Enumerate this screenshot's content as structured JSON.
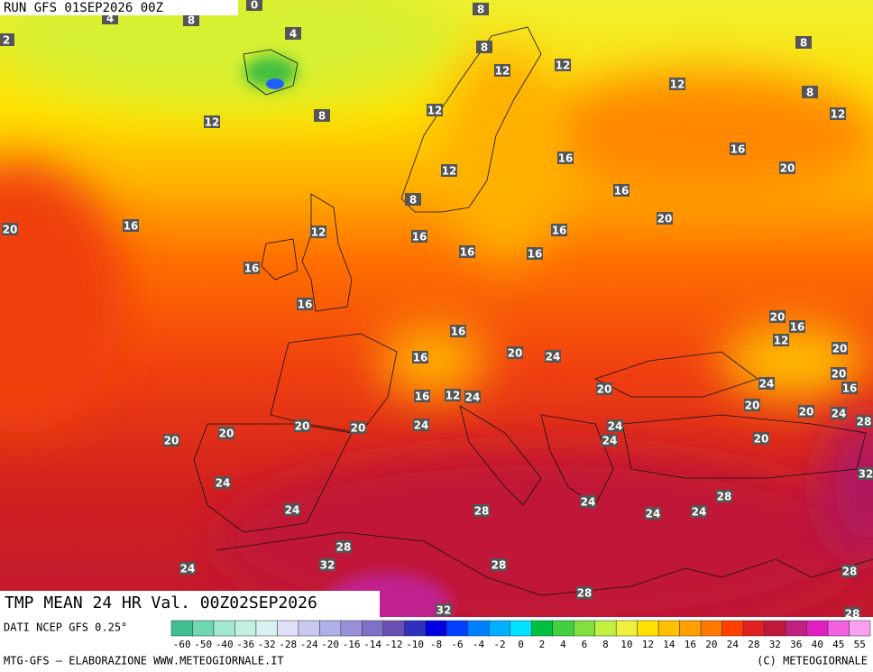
{
  "header": {
    "run": "RUN GFS 01SEP2026 00Z"
  },
  "map": {
    "title": "TMP MEAN 24 HR Val. 00Z02SEP2026",
    "contour_labels": [
      0,
      4,
      8,
      4,
      8,
      2,
      8,
      8,
      12,
      12,
      12,
      8,
      12,
      12,
      12,
      8,
      16,
      16,
      12,
      20,
      16,
      8,
      20,
      16,
      20,
      12,
      16,
      16,
      16,
      16,
      16,
      16,
      20,
      16,
      16,
      12,
      20,
      20,
      16,
      24,
      20,
      24,
      16,
      20,
      16,
      12,
      24,
      20,
      20,
      24,
      28,
      24,
      20,
      20,
      24,
      20,
      20,
      24,
      20,
      32,
      24,
      28,
      24,
      24,
      28,
      24,
      24,
      28,
      32,
      28,
      24,
      28,
      28,
      32,
      28
    ]
  },
  "legend": {
    "source": "DATI NCEP GFS 0.25°",
    "labels": [
      -60,
      -50,
      -40,
      -36,
      -32,
      -28,
      -24,
      -20,
      -16,
      -14,
      -12,
      -10,
      -8,
      -6,
      -4,
      -2,
      0,
      2,
      4,
      6,
      8,
      10,
      12,
      14,
      16,
      20,
      24,
      28,
      32,
      36,
      40,
      45,
      55
    ],
    "colors": [
      "#40c090",
      "#70d8b0",
      "#a0e8d0",
      "#c0f0e0",
      "#d8f0f0",
      "#e0e0f8",
      "#c8c8f0",
      "#b0b0e8",
      "#9890d8",
      "#8070c8",
      "#6850b0",
      "#3030c0",
      "#0000e0",
      "#0040ff",
      "#0080ff",
      "#00b0ff",
      "#00e0ff",
      "#00c040",
      "#40d040",
      "#80e040",
      "#c0f040",
      "#f0f040",
      "#ffe000",
      "#ffc000",
      "#ffa000",
      "#ff7800",
      "#ff4000",
      "#e02020",
      "#c01838",
      "#c02080",
      "#e020c0",
      "#f060e0",
      "#f8a0f0"
    ]
  },
  "footer": {
    "credit": "MTG-GFS — ELABORAZIONE WWW.METEOGIORNALE.IT",
    "copyright": "(C) METEOGIORNALE"
  }
}
